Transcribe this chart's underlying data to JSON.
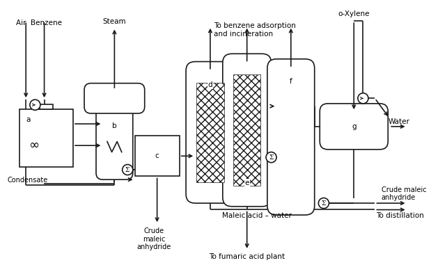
{
  "bg_color": "#ffffff",
  "line_color": "#1a1a1a",
  "annotations": {
    "air_benzene": "Air  Benzene",
    "steam": "Steam",
    "condensate": "Condensate",
    "crude_maleic_1": "Crude\nmaleic\nanhydride",
    "crude_maleic_2": "Crude maleic\nanhydride",
    "to_benzene": "To benzene adsorption\nand incineration",
    "maleic_acid_water": "Maleic acid – water",
    "to_fumaric": "To fumaric acid plant",
    "to_distillation": "To distillation",
    "water": "Water",
    "o_xylene": "o-Xylene"
  }
}
